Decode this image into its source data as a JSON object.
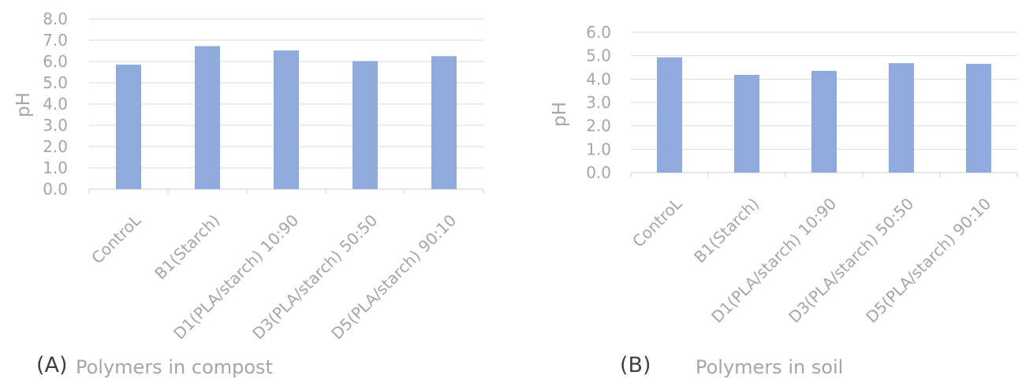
{
  "chart_data": [
    {
      "type": "bar",
      "panel_label": "(A)",
      "caption": "Polymers in compost",
      "categories": [
        "ControL",
        "B1(Starch)",
        "D1(PLA/starch) 10:90",
        "D3(PLA/starch) 50:50",
        "D5(PLA/starch) 90:10"
      ],
      "values": [
        5.85,
        6.72,
        6.52,
        6.02,
        6.25
      ],
      "ylabel": "pH",
      "ylim": [
        0,
        8
      ],
      "yticks": [
        "0.0",
        "1.0",
        "2.0",
        "3.0",
        "4.0",
        "5.0",
        "6.0",
        "7.0",
        "8.0"
      ],
      "grid": true,
      "bar_color": "#8faadc",
      "grid_color": "#d9d9d9",
      "text_color": "#a6a6a6"
    },
    {
      "type": "bar",
      "panel_label": "(B)",
      "caption": "Polymers in soil",
      "categories": [
        "ControL",
        "B1(Starch)",
        "D1(PLA/starch) 10:90",
        "D3(PLA/starch) 50:50",
        "D5(PLA/starch) 90:10"
      ],
      "values": [
        4.93,
        4.18,
        4.35,
        4.68,
        4.65
      ],
      "ylabel": "pH",
      "ylim": [
        0,
        6
      ],
      "yticks": [
        "0.0",
        "1.0",
        "2.0",
        "3.0",
        "4.0",
        "5.0",
        "6.0"
      ],
      "grid": true,
      "bar_color": "#8faadc",
      "grid_color": "#d9d9d9",
      "text_color": "#a6a6a6"
    }
  ]
}
